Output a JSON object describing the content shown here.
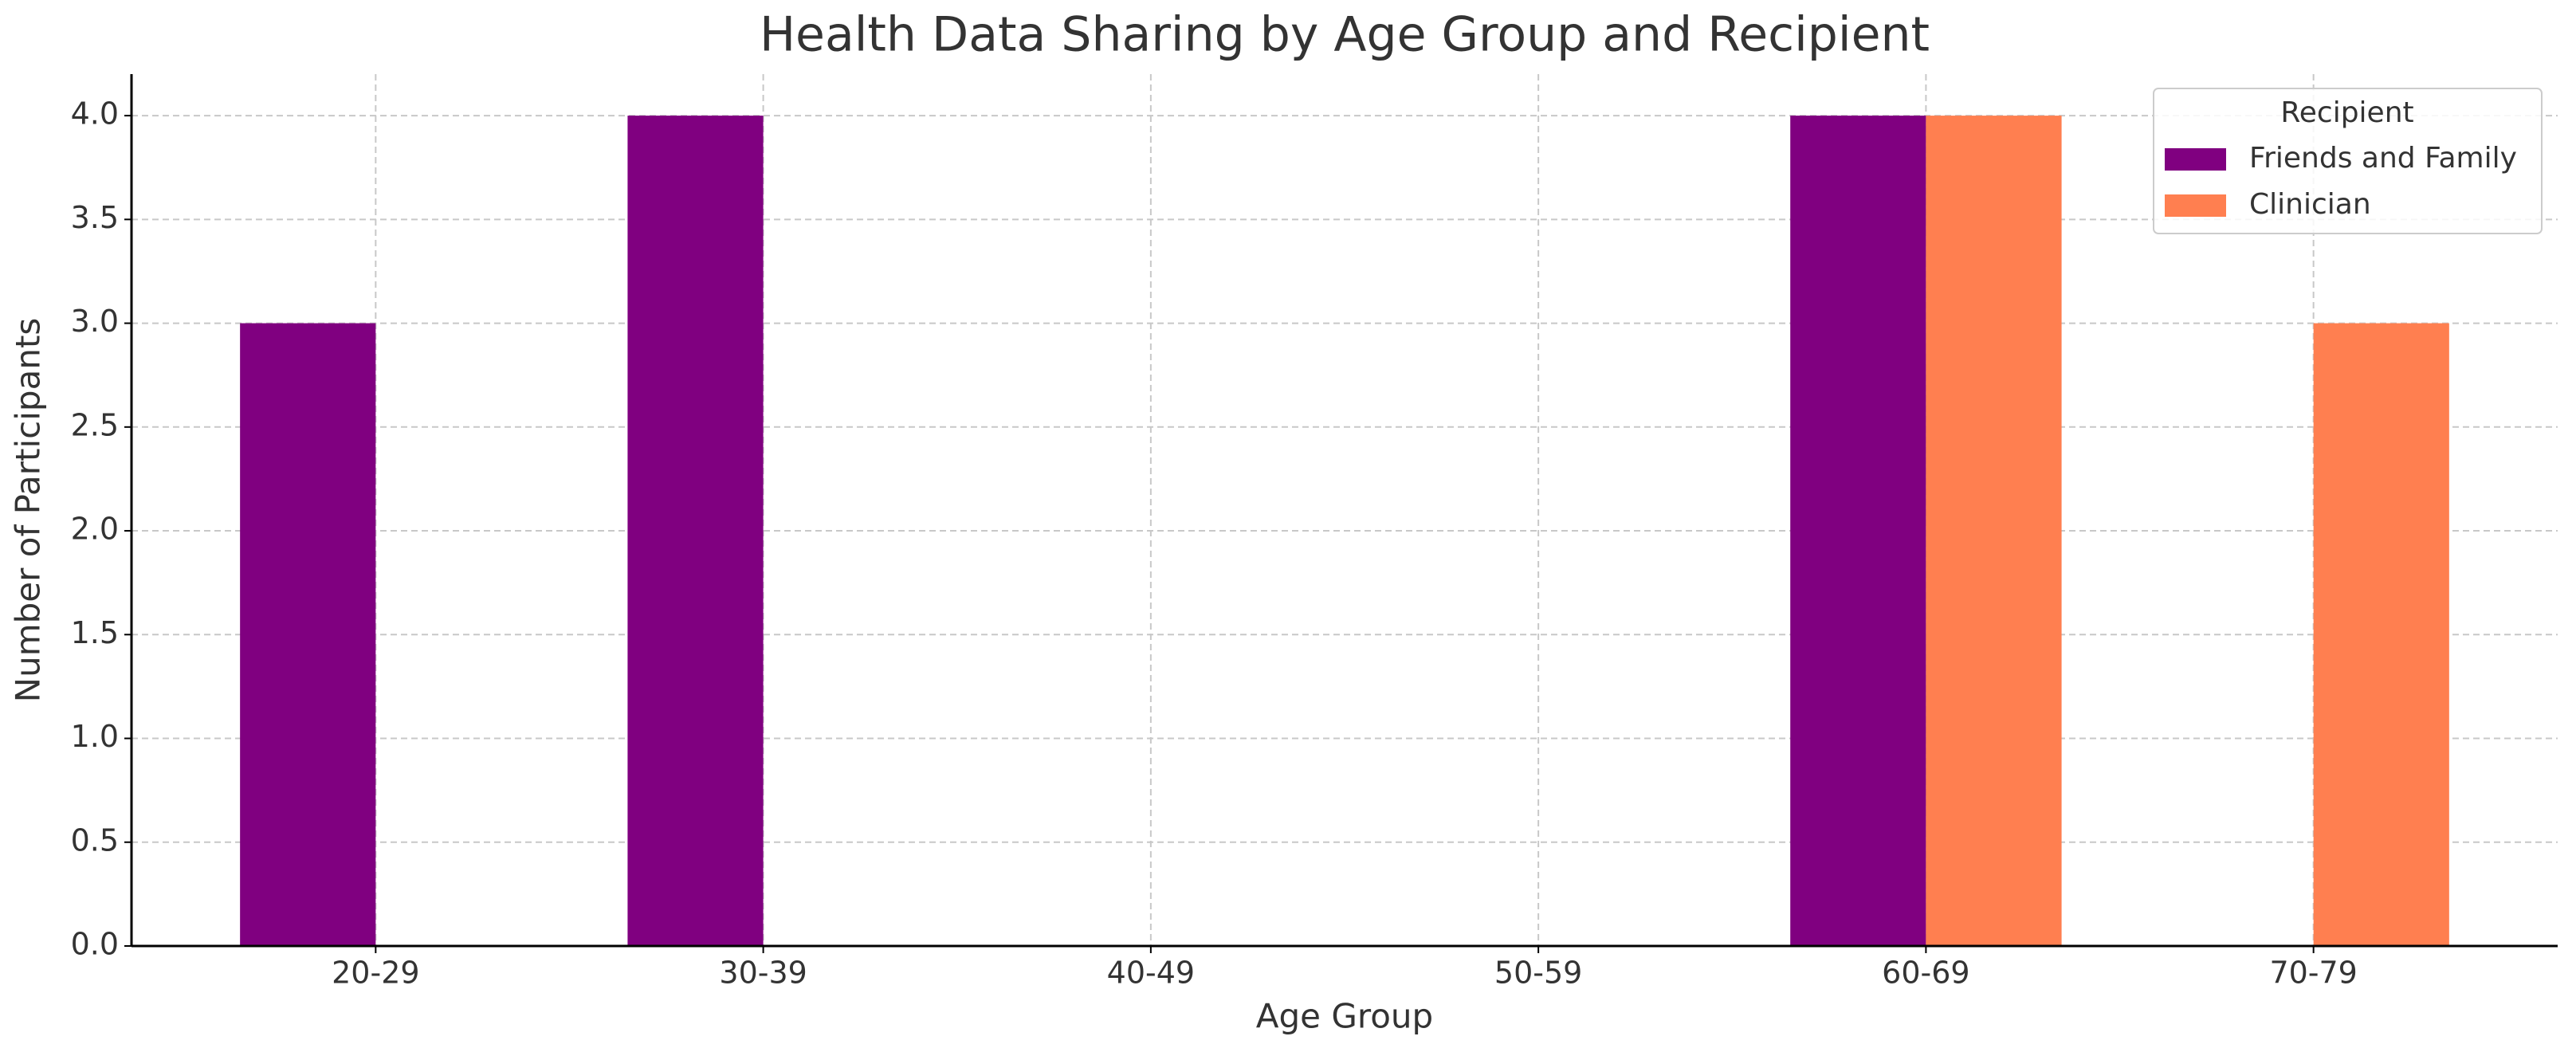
{
  "chart_data": {
    "type": "bar",
    "title": "Health Data Sharing by Age Group and Recipient",
    "x_label": "Age Group",
    "y_label": "Number of Participants",
    "categories": [
      "20-29",
      "30-39",
      "40-49",
      "50-59",
      "60-69",
      "70-79"
    ],
    "series": [
      {
        "name": "Friends and Family",
        "color": "#800080",
        "values": [
          3,
          4,
          0,
          0,
          4,
          0
        ]
      },
      {
        "name": "Clinician",
        "color": "#ff7f50",
        "values": [
          0,
          0,
          0,
          0,
          4,
          3
        ]
      }
    ],
    "ylim": [
      0,
      4.2
    ],
    "yticks": [
      {
        "value": 0,
        "label": "0.0"
      },
      {
        "value": 0.5,
        "label": "0.5"
      },
      {
        "value": 1,
        "label": "1.0"
      },
      {
        "value": 1.5,
        "label": "1.5"
      },
      {
        "value": 2,
        "label": "2.0"
      },
      {
        "value": 2.5,
        "label": "2.5"
      },
      {
        "value": 3,
        "label": "3.0"
      },
      {
        "value": 3.5,
        "label": "3.5"
      },
      {
        "value": 4,
        "label": "4.0"
      }
    ],
    "grid": true,
    "legend_title": "Recipient",
    "legend_position": "upper right"
  }
}
